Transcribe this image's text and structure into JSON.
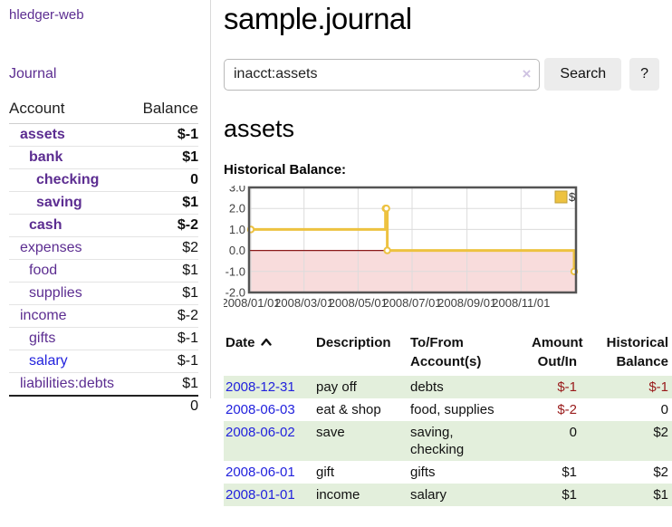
{
  "app": {
    "title": "hledger-web",
    "nav": {
      "journal": "Journal"
    }
  },
  "sidebar": {
    "columns": {
      "account": "Account",
      "balance": "Balance"
    },
    "accounts": [
      {
        "name": "assets",
        "balance": "$-1"
      },
      {
        "name": "bank",
        "balance": "$1"
      },
      {
        "name": "checking",
        "balance": "0"
      },
      {
        "name": "saving",
        "balance": "$1"
      },
      {
        "name": "cash",
        "balance": "$-2"
      },
      {
        "name": "expenses",
        "balance": "$2"
      },
      {
        "name": "food",
        "balance": "$1"
      },
      {
        "name": "supplies",
        "balance": "$1"
      },
      {
        "name": "income",
        "balance": "$-2"
      },
      {
        "name": "gifts",
        "balance": "$-1"
      },
      {
        "name": "salary",
        "balance": "$-1"
      },
      {
        "name": "liabilities:debts",
        "balance": "$1"
      }
    ],
    "total": "0"
  },
  "main": {
    "title": "sample.journal",
    "search": {
      "value": "inacct:assets",
      "clear_icon": "×",
      "button": "Search",
      "help": "?"
    },
    "section_title": "assets",
    "chart_label": "Historical Balance:"
  },
  "register": {
    "headers": {
      "date": "Date",
      "sort_icon": "chevron-up",
      "description": "Description",
      "accounts": "To/From\nAccount(s)",
      "amount": "Amount\nOut/In",
      "balance": "Historical\nBalance"
    },
    "rows": [
      {
        "date": "2008-12-31",
        "description": "pay off",
        "accounts": "debts",
        "amount": "$-1",
        "balance": "$-1"
      },
      {
        "date": "2008-06-03",
        "description": "eat & shop",
        "accounts": "food, supplies",
        "amount": "$-2",
        "balance": "0"
      },
      {
        "date": "2008-06-02",
        "description": "save",
        "accounts": "saving,\nchecking",
        "amount": "0",
        "balance": "$2"
      },
      {
        "date": "2008-06-01",
        "description": "gift",
        "accounts": "gifts",
        "amount": "$1",
        "balance": "$2"
      },
      {
        "date": "2008-01-01",
        "description": "income",
        "accounts": "salary",
        "amount": "$1",
        "balance": "$1"
      }
    ]
  },
  "chart_data": {
    "type": "line",
    "step": true,
    "title": "Historical Balance",
    "legend_position": "top-right",
    "xrange": [
      "2008-01-01",
      "2008-12-31"
    ],
    "ylim": [
      -2,
      3
    ],
    "yticks": [
      3.0,
      2.0,
      1.0,
      0.0,
      -1.0,
      -2.0
    ],
    "xticks": [
      "2008/01/01",
      "2008/03/01",
      "2008/05/01",
      "2008/07/01",
      "2008/09/01",
      "2008/11/01"
    ],
    "series": [
      {
        "name": "$",
        "color": "#EDC240",
        "points": [
          [
            "2008-01-01",
            1
          ],
          [
            "2008-06-01",
            2
          ],
          [
            "2008-06-02",
            2
          ],
          [
            "2008-06-03",
            0
          ],
          [
            "2008-12-31",
            -1
          ]
        ]
      }
    ],
    "negative_region_fill": "#f8dcdc",
    "zero_line_color": "#8b1a1a",
    "grid_color": "#dcdcdc",
    "border_color": "#545454"
  }
}
